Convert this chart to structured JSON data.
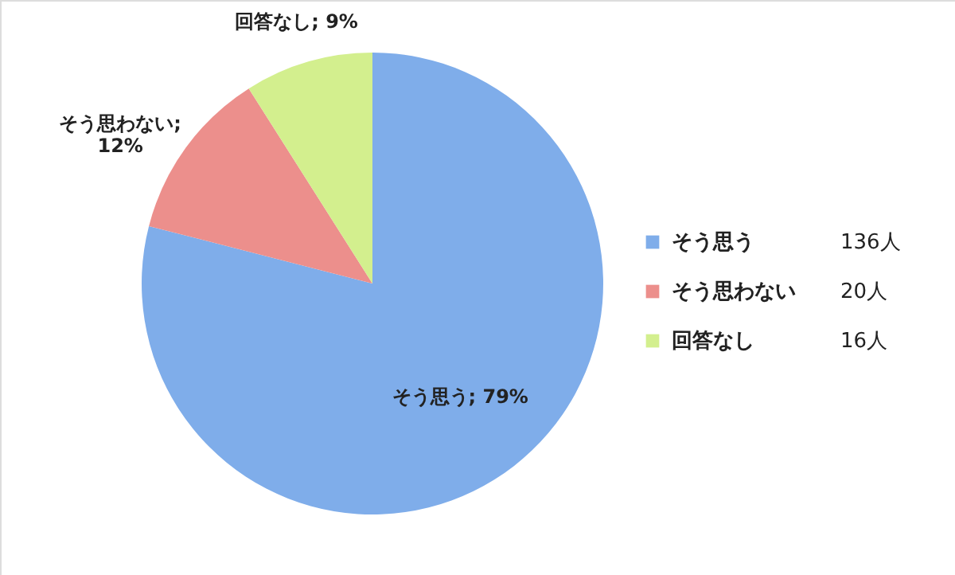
{
  "chart_data": {
    "type": "pie",
    "categories": [
      "そう思う",
      "そう思わない",
      "回答なし"
    ],
    "values": [
      79,
      12,
      9
    ],
    "colors": [
      "#7fadea",
      "#ec8f8c",
      "#d3ef8e"
    ],
    "value_labels": [
      "そう思う; 79%",
      "そう思わない; 12%",
      "回答なし; 9%"
    ],
    "annotations": [
      "136人",
      "20人",
      "16人"
    ],
    "legend": "right"
  }
}
